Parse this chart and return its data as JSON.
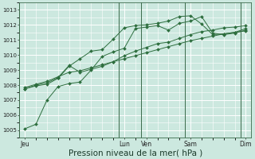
{
  "bg_color": "#cce8df",
  "grid_color": "#ffffff",
  "line_color": "#2d6e3e",
  "xlabel": "Pression niveau de la mer( hPa )",
  "xlabel_fontsize": 7.5,
  "ylim": [
    1004.5,
    1013.5
  ],
  "yticks": [
    1005,
    1006,
    1007,
    1008,
    1009,
    1010,
    1011,
    1012,
    1013
  ],
  "day_labels": [
    "Jeu",
    "Lun",
    "Ven",
    "Sam",
    "Dim"
  ],
  "day_positions": [
    0,
    9,
    11,
    15,
    20
  ],
  "vline_positions": [
    0,
    9,
    11,
    15,
    20
  ],
  "n_points": 21,
  "series": [
    [
      1005.1,
      1005.4,
      1007.0,
      1007.9,
      1008.1,
      1008.2,
      1009.0,
      1009.9,
      1010.2,
      1010.45,
      1011.75,
      1011.85,
      1011.95,
      1011.65,
      1012.1,
      1012.25,
      1012.55,
      1011.45,
      1011.35,
      1011.45,
      1011.65
    ],
    [
      1007.75,
      1007.95,
      1008.05,
      1008.45,
      1009.25,
      1009.75,
      1010.25,
      1010.35,
      1011.05,
      1011.8,
      1011.95,
      1012.0,
      1012.1,
      1012.25,
      1012.55,
      1012.6,
      1012.05,
      1011.35,
      1011.4,
      1011.5,
      1011.75
    ],
    [
      1007.75,
      1008.0,
      1008.15,
      1008.5,
      1009.3,
      1008.85,
      1009.05,
      1009.25,
      1009.55,
      1009.95,
      1010.25,
      1010.5,
      1010.75,
      1010.85,
      1011.1,
      1011.35,
      1011.55,
      1011.65,
      1011.8,
      1011.85,
      1011.95
    ],
    [
      1007.85,
      1008.05,
      1008.25,
      1008.55,
      1008.85,
      1008.95,
      1009.15,
      1009.35,
      1009.55,
      1009.75,
      1009.95,
      1010.15,
      1010.35,
      1010.55,
      1010.75,
      1010.95,
      1011.1,
      1011.25,
      1011.4,
      1011.5,
      1011.6
    ]
  ]
}
